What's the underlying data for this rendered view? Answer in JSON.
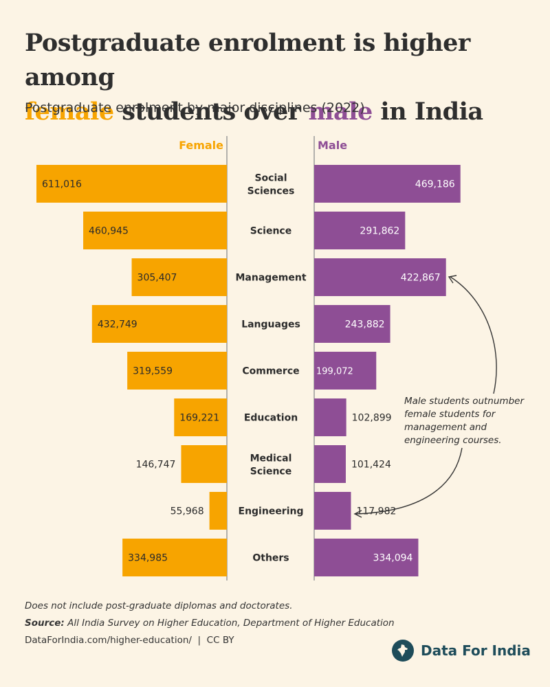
{
  "title": {
    "part1": "Postgraduate enrolment is higher among",
    "female_word": "female",
    "part2": "students over",
    "male_word": "male",
    "part3": "in India"
  },
  "subtitle": "Postgraduate enrolment by major disciplines (2022)",
  "colors": {
    "female": "#f7a400",
    "male": "#8e4e95",
    "background": "#fcf4e5",
    "brand": "#1e4c5a"
  },
  "chart_data": {
    "type": "bar",
    "orientation": "horizontal-diverging",
    "categories": [
      "Social Sciences",
      "Science",
      "Management",
      "Languages",
      "Commerce",
      "Education",
      "Medical Science",
      "Engineering",
      "Others"
    ],
    "series": [
      {
        "name": "Female",
        "values": [
          611016,
          460945,
          305407,
          432749,
          319559,
          169221,
          146747,
          55968,
          334985
        ]
      },
      {
        "name": "Male",
        "values": [
          469186,
          291862,
          422867,
          243882,
          199072,
          102899,
          101424,
          117982,
          334094
        ]
      }
    ],
    "value_labels": {
      "Female": [
        "611,016",
        "460,945",
        "305,407",
        "432,749",
        "319,559",
        "169,221",
        "146,747",
        "55,968",
        "334,985"
      ],
      "Male": [
        "469,186",
        "291,862",
        "422,867",
        "243,882",
        "199,072",
        "102,899",
        "101,424",
        "117,982",
        "334,094"
      ]
    },
    "xlim": [
      0,
      611016
    ],
    "annotation": "Male students outnumber female students for management and engineering courses."
  },
  "notes": {
    "disclaimer": "Does not include post-graduate diplomas and doctorates.",
    "source_label": "Source:",
    "source_text": "All India Survey on Higher Education, Department of Higher Education",
    "credit": "DataForIndia.com/higher-education/  |  CC BY"
  },
  "brand": {
    "name": "Data For India",
    "icon": "india-map-icon"
  }
}
